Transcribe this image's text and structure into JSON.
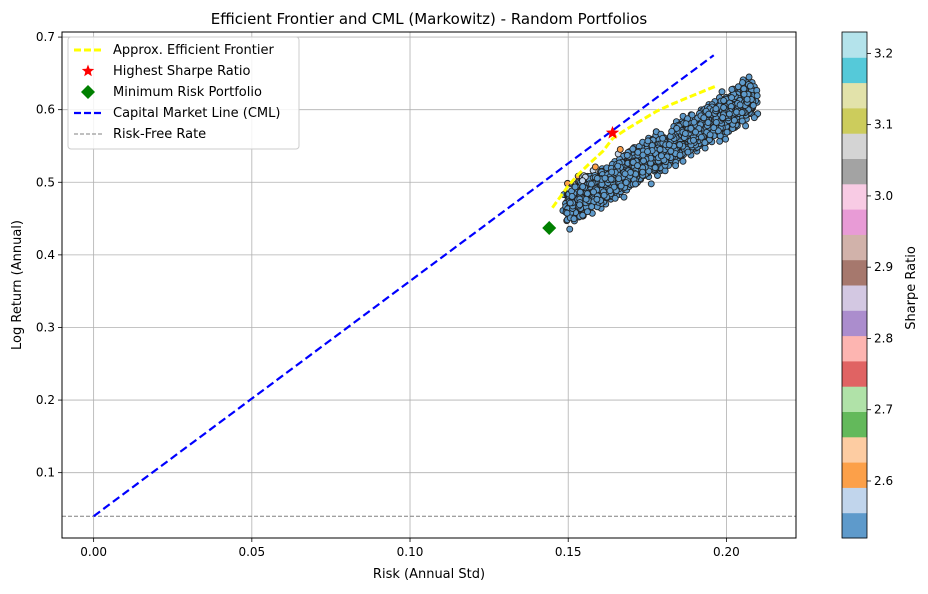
{
  "chart_data": {
    "type": "scatter",
    "title": "Efficient Frontier and CML (Markowitz) - Random Portfolios",
    "xlabel": "Risk (Annual Std)",
    "ylabel": "Log Return (Annual)",
    "xlim": [
      -0.01,
      0.222
    ],
    "ylim": [
      0.01,
      0.707
    ],
    "xticks": [
      0.0,
      0.05,
      0.1,
      0.15,
      0.2
    ],
    "xtick_labels": [
      "0.00",
      "0.05",
      "0.10",
      "0.15",
      "0.20"
    ],
    "yticks": [
      0.1,
      0.2,
      0.3,
      0.4,
      0.5,
      0.6,
      0.7
    ],
    "ytick_labels": [
      "0.1",
      "0.2",
      "0.3",
      "0.4",
      "0.5",
      "0.6",
      "0.7"
    ],
    "grid": true,
    "legend_position": "top-left",
    "legend": [
      {
        "label": "Approx. Efficient Frontier",
        "marker": "dashed-line",
        "color": "#ffff00"
      },
      {
        "label": "Highest Sharpe Ratio",
        "marker": "star",
        "color": "#ff0000"
      },
      {
        "label": "Minimum Risk Portfolio",
        "marker": "diamond",
        "color": "#008000"
      },
      {
        "label": "Capital Market Line (CML)",
        "marker": "dashed-line",
        "color": "#0000ff"
      },
      {
        "label": "Risk-Free Rate",
        "marker": "thin-dashed-line",
        "color": "#808080"
      }
    ],
    "risk_free_rate": 0.04,
    "cml": {
      "x": [
        0.0,
        0.196
      ],
      "y": [
        0.04,
        0.675
      ]
    },
    "highest_sharpe": {
      "x": 0.164,
      "y": 0.568
    },
    "minimum_risk": {
      "x": 0.144,
      "y": 0.437
    },
    "efficient_frontier": {
      "x": [
        0.145,
        0.148,
        0.15,
        0.153,
        0.157,
        0.161,
        0.164,
        0.168,
        0.173,
        0.178,
        0.183,
        0.188,
        0.193,
        0.197
      ],
      "y": [
        0.465,
        0.483,
        0.495,
        0.51,
        0.527,
        0.543,
        0.56,
        0.572,
        0.585,
        0.598,
        0.608,
        0.617,
        0.626,
        0.633
      ]
    },
    "scatter_cloud": {
      "count": 2600,
      "x_range": [
        0.145,
        0.211
      ],
      "y_range": [
        0.445,
        0.645
      ]
    },
    "colorbar": {
      "label": "Sharpe Ratio",
      "range": [
        2.52,
        3.23
      ],
      "ticks": [
        2.6,
        2.7,
        2.8,
        2.9,
        3.0,
        3.1,
        3.2
      ],
      "tick_labels": [
        "2.6",
        "2.7",
        "2.8",
        "2.9",
        "3.0",
        "3.1",
        "3.2"
      ],
      "colors": [
        "#5e9acb",
        "#c1d5ec",
        "#fca049",
        "#fdcca2",
        "#63b95b",
        "#b0e2a8",
        "#e06363",
        "#fdb5b1",
        "#ab8dcd",
        "#d3c8e2",
        "#a6786d",
        "#d1b2aa",
        "#e89bd6",
        "#f8cbe4",
        "#a3a3a3",
        "#d4d4d4",
        "#cccc5c",
        "#e2e2aa",
        "#55c9d9",
        "#b4e3eb"
      ]
    }
  }
}
